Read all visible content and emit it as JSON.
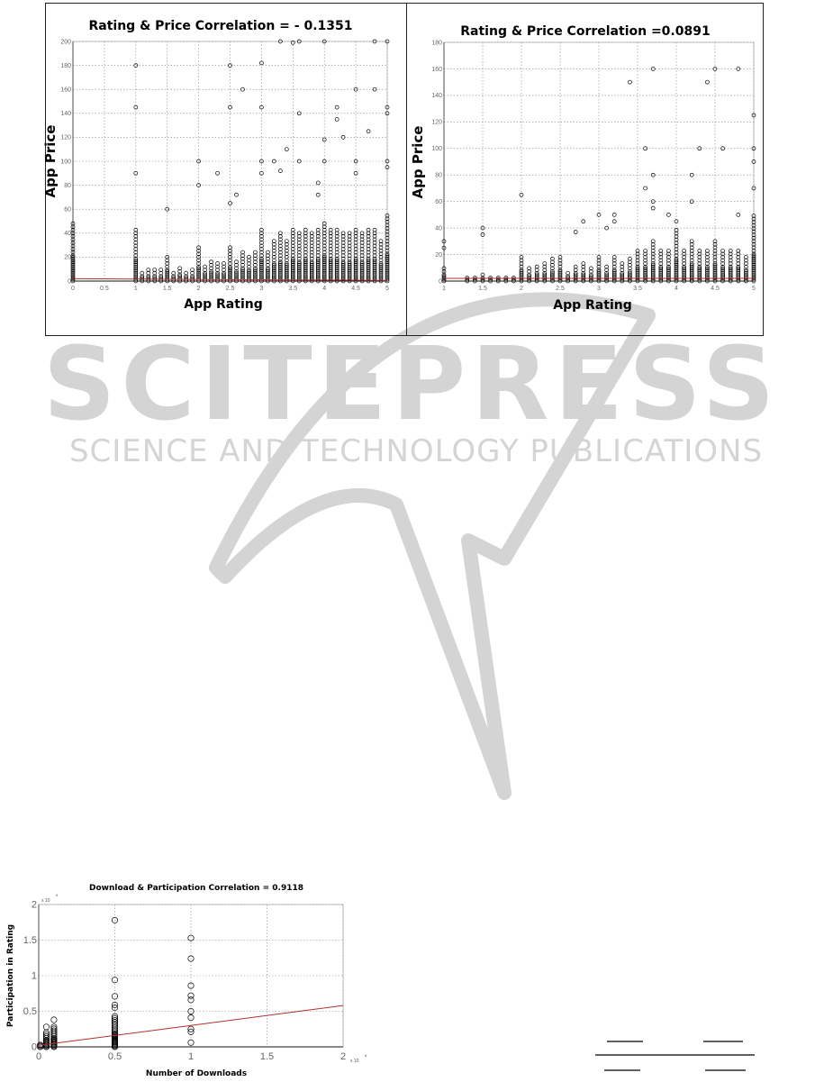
{
  "watermark": {
    "brand": "SCITEPRESS",
    "tagline": "SCIENCE AND TECHNOLOGY PUBLICATIONS",
    "color": "#d4d4d4"
  },
  "chart_data": [
    {
      "type": "scatter",
      "title": "Rating & Price Correlation = - 0.1351",
      "xlabel": "App Rating",
      "ylabel": "App Price",
      "xlim": [
        0,
        5
      ],
      "ylim": [
        0,
        200
      ],
      "xticks": [
        0,
        0.5,
        1,
        1.5,
        2,
        2.5,
        3,
        3.5,
        4,
        4.5,
        5
      ],
      "xtick_labels": [
        "0",
        "0.5",
        "1",
        "1.5",
        "2",
        "2.5",
        "3",
        "3.5",
        "4",
        "4.5",
        "5"
      ],
      "yticks": [
        0,
        20,
        40,
        60,
        80,
        100,
        120,
        140,
        160,
        180,
        200
      ],
      "grid": true,
      "fit_line": [
        [
          0,
          2
        ],
        [
          5,
          0.5
        ]
      ],
      "dense_columns": [
        [
          0,
          50
        ],
        [
          1,
          45
        ],
        [
          1.1,
          8
        ],
        [
          1.2,
          10
        ],
        [
          1.3,
          10
        ],
        [
          1.4,
          10
        ],
        [
          1.5,
          20
        ],
        [
          1.6,
          8
        ],
        [
          1.7,
          12
        ],
        [
          1.8,
          8
        ],
        [
          1.9,
          10
        ],
        [
          2,
          30
        ],
        [
          2.1,
          14
        ],
        [
          2.2,
          18
        ],
        [
          2.3,
          15
        ],
        [
          2.4,
          16
        ],
        [
          2.5,
          30
        ],
        [
          2.6,
          18
        ],
        [
          2.7,
          25
        ],
        [
          2.8,
          20
        ],
        [
          2.9,
          25
        ],
        [
          3,
          45
        ],
        [
          3.1,
          25
        ],
        [
          3.2,
          35
        ],
        [
          3.3,
          40
        ],
        [
          3.4,
          35
        ],
        [
          3.5,
          45
        ],
        [
          3.6,
          40
        ],
        [
          3.7,
          45
        ],
        [
          3.8,
          40
        ],
        [
          3.9,
          45
        ],
        [
          4,
          50
        ],
        [
          4.1,
          45
        ],
        [
          4.2,
          45
        ],
        [
          4.3,
          40
        ],
        [
          4.4,
          40
        ],
        [
          4.5,
          45
        ],
        [
          4.6,
          40
        ],
        [
          4.7,
          45
        ],
        [
          4.8,
          45
        ],
        [
          4.9,
          35
        ],
        [
          5,
          55
        ]
      ],
      "points": [
        [
          1,
          180
        ],
        [
          1,
          145
        ],
        [
          1,
          90
        ],
        [
          1.5,
          60
        ],
        [
          2,
          100
        ],
        [
          2,
          80
        ],
        [
          2.3,
          90
        ],
        [
          2.5,
          180
        ],
        [
          2.5,
          145
        ],
        [
          2.5,
          65
        ],
        [
          2.6,
          72
        ],
        [
          2.7,
          160
        ],
        [
          3,
          182
        ],
        [
          3,
          145
        ],
        [
          3,
          100
        ],
        [
          3,
          90
        ],
        [
          3.2,
          100
        ],
        [
          3.3,
          200
        ],
        [
          3.3,
          92
        ],
        [
          3.4,
          110
        ],
        [
          3.5,
          199
        ],
        [
          3.6,
          200
        ],
        [
          3.6,
          140
        ],
        [
          3.6,
          100
        ],
        [
          3.9,
          82
        ],
        [
          3.9,
          72
        ],
        [
          4,
          200
        ],
        [
          4,
          118
        ],
        [
          4,
          100
        ],
        [
          4.2,
          145
        ],
        [
          4.2,
          135
        ],
        [
          4.3,
          120
        ],
        [
          4.5,
          100
        ],
        [
          4.5,
          160
        ],
        [
          4.5,
          90
        ],
        [
          4.7,
          125
        ],
        [
          4.8,
          160
        ],
        [
          4.8,
          200
        ],
        [
          5,
          200
        ],
        [
          5,
          145
        ],
        [
          5,
          140
        ],
        [
          5,
          100
        ],
        [
          5,
          95
        ]
      ]
    },
    {
      "type": "scatter",
      "title": "Rating & Price Correlation =0.0891",
      "xlabel": "App Rating",
      "ylabel": "App Price",
      "xlim": [
        1,
        5
      ],
      "ylim": [
        0,
        180
      ],
      "xticks": [
        1,
        1.5,
        2,
        2.5,
        3,
        3.5,
        4,
        4.5,
        5
      ],
      "xtick_labels": [
        "1",
        "1.5",
        "2",
        "2.5",
        "3",
        "3.5",
        "4",
        "4.5",
        "5"
      ],
      "yticks": [
        0,
        20,
        40,
        60,
        80,
        100,
        120,
        140,
        160,
        180
      ],
      "grid": true,
      "fit_line": [
        [
          1,
          2
        ],
        [
          5,
          2
        ]
      ],
      "dense_columns": [
        [
          1,
          10
        ],
        [
          1.3,
          3
        ],
        [
          1.4,
          4
        ],
        [
          1.5,
          5
        ],
        [
          1.6,
          4
        ],
        [
          1.7,
          4
        ],
        [
          1.8,
          3
        ],
        [
          1.9,
          3
        ],
        [
          2,
          20
        ],
        [
          2.1,
          10
        ],
        [
          2.2,
          12
        ],
        [
          2.3,
          15
        ],
        [
          2.4,
          18
        ],
        [
          2.5,
          20
        ],
        [
          2.6,
          8
        ],
        [
          2.7,
          12
        ],
        [
          2.8,
          15
        ],
        [
          2.9,
          10
        ],
        [
          3,
          20
        ],
        [
          3.1,
          12
        ],
        [
          3.2,
          20
        ],
        [
          3.3,
          15
        ],
        [
          3.4,
          18
        ],
        [
          3.5,
          25
        ],
        [
          3.6,
          25
        ],
        [
          3.7,
          30
        ],
        [
          3.8,
          25
        ],
        [
          3.9,
          25
        ],
        [
          4,
          40
        ],
        [
          4.1,
          25
        ],
        [
          4.2,
          30
        ],
        [
          4.3,
          25
        ],
        [
          4.4,
          25
        ],
        [
          4.5,
          30
        ],
        [
          4.6,
          25
        ],
        [
          4.7,
          25
        ],
        [
          4.8,
          25
        ],
        [
          4.9,
          20
        ],
        [
          5,
          50
        ]
      ],
      "points": [
        [
          1,
          30
        ],
        [
          1,
          25
        ],
        [
          1.5,
          40
        ],
        [
          1.5,
          35
        ],
        [
          2,
          65
        ],
        [
          2.7,
          37
        ],
        [
          2.8,
          45
        ],
        [
          3,
          50
        ],
        [
          3.1,
          40
        ],
        [
          3.2,
          50
        ],
        [
          3.2,
          45
        ],
        [
          3.4,
          150
        ],
        [
          3.6,
          100
        ],
        [
          3.6,
          70
        ],
        [
          3.7,
          160
        ],
        [
          3.7,
          80
        ],
        [
          3.7,
          60
        ],
        [
          3.7,
          55
        ],
        [
          3.9,
          50
        ],
        [
          4,
          45
        ],
        [
          4.2,
          80
        ],
        [
          4.2,
          60
        ],
        [
          4.3,
          100
        ],
        [
          4.4,
          150
        ],
        [
          4.5,
          160
        ],
        [
          4.6,
          100
        ],
        [
          4.8,
          160
        ],
        [
          4.8,
          50
        ],
        [
          5,
          125
        ],
        [
          5,
          100
        ],
        [
          5,
          90
        ],
        [
          5,
          70
        ]
      ]
    },
    {
      "type": "scatter",
      "title": "Download & Participation Correlation = 0.9118",
      "xlabel": "Number of Downloads",
      "ylabel": "Participation in Rating",
      "x_multiplier": "x 10",
      "x_exponent": "8",
      "y_multiplier": "x 10",
      "y_exponent": "6",
      "xlim": [
        0,
        2
      ],
      "ylim": [
        0,
        2
      ],
      "xticks": [
        0,
        0.5,
        1,
        1.5,
        2
      ],
      "xtick_labels": [
        "0",
        "0.5",
        "1",
        "1.5",
        "2"
      ],
      "yticks": [
        0,
        0.5,
        1,
        1.5,
        2
      ],
      "ytick_labels": [
        "0",
        "0.5",
        "1",
        "1.5",
        "2"
      ],
      "grid": true,
      "fit_line": [
        [
          0,
          0.02
        ],
        [
          2,
          0.58
        ]
      ],
      "dense_columns": [
        [
          0.01,
          0.05
        ],
        [
          0.05,
          0.22
        ],
        [
          0.1,
          0.3
        ],
        [
          0.5,
          0.45
        ]
      ],
      "points": [
        [
          0.05,
          0.28
        ],
        [
          0.1,
          0.38
        ],
        [
          0.5,
          1.78
        ],
        [
          0.5,
          0.94
        ],
        [
          0.5,
          0.71
        ],
        [
          0.5,
          0.59
        ],
        [
          0.5,
          0.55
        ],
        [
          1,
          1.53
        ],
        [
          1,
          1.24
        ],
        [
          1,
          0.86
        ],
        [
          1,
          0.72
        ],
        [
          1,
          0.66
        ],
        [
          1,
          0.5
        ],
        [
          1,
          0.41
        ],
        [
          1,
          0.25
        ],
        [
          1,
          0.21
        ],
        [
          1,
          0.06
        ]
      ]
    }
  ],
  "equation_fragment": {
    "color": "#000000"
  }
}
